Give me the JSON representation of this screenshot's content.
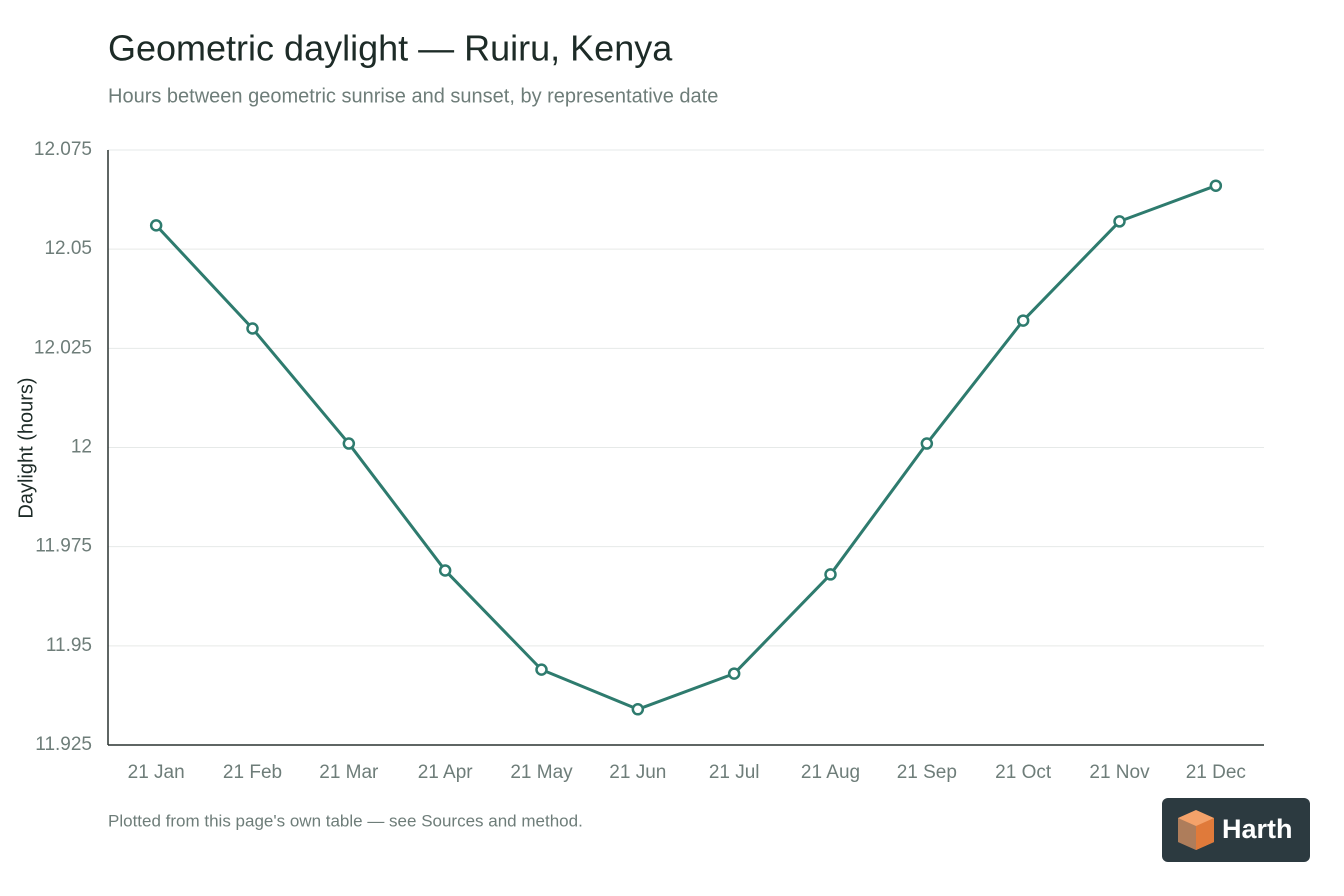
{
  "chart_data": {
    "type": "line",
    "title": "Geometric daylight — Ruiru, Kenya",
    "subtitle": "Hours between geometric sunrise and sunset, by representative date",
    "y_label": "Daylight (hours)",
    "footnote": "Plotted from this page's own table — see Sources and method.",
    "categories": [
      "21 Jan",
      "21 Feb",
      "21 Mar",
      "21 Apr",
      "21 May",
      "21 Jun",
      "21 Jul",
      "21 Aug",
      "21 Sep",
      "21 Oct",
      "21 Nov",
      "21 Dec"
    ],
    "series": [
      {
        "color": "#2e7b6e",
        "values": [
          12.056,
          12.03,
          12.001,
          11.969,
          11.944,
          11.934,
          11.943,
          11.968,
          12.001,
          12.032,
          12.057,
          12.066
        ]
      }
    ],
    "ylim": [
      11.925,
      12.075
    ],
    "yticks": [
      12.075,
      12.05,
      12.025,
      12,
      11.975,
      11.95,
      11.925
    ],
    "grid": true
  },
  "brand": {
    "name": "Harth"
  }
}
